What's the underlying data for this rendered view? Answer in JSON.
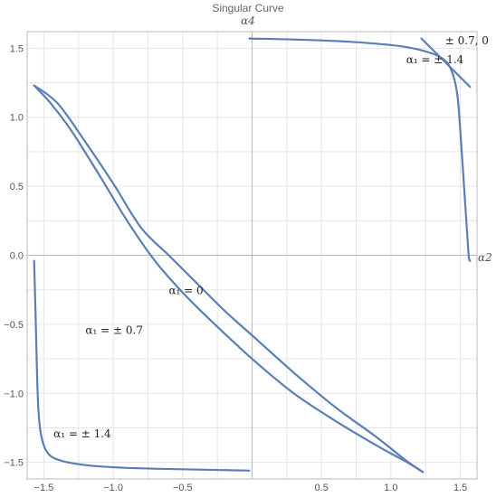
{
  "chart_data": {
    "type": "line",
    "title": "Singular Curve",
    "xlabel": "α2",
    "ylabel": "α4",
    "xlim": [
      -1.62,
      1.62
    ],
    "ylim": [
      -1.62,
      1.62
    ],
    "grid": true,
    "x_ticks": [
      {
        "value": -1.5,
        "label": "−1.5"
      },
      {
        "value": -1.0,
        "label": "−1.0"
      },
      {
        "value": -0.5,
        "label": "−0.5"
      },
      {
        "value": 0.5,
        "label": "0.5"
      },
      {
        "value": 1.0,
        "label": "1.0"
      },
      {
        "value": 1.5,
        "label": "1.5"
      }
    ],
    "y_ticks": [
      {
        "value": 1.5,
        "label": "1.5"
      },
      {
        "value": 1.0,
        "label": "1.0"
      },
      {
        "value": 0.5,
        "label": "0.5"
      },
      {
        "value": 0.0,
        "label": "0.0"
      },
      {
        "value": -0.5,
        "label": "−0.5"
      },
      {
        "value": -1.0,
        "label": "−1.0"
      },
      {
        "value": -1.5,
        "label": "−1.5"
      }
    ],
    "series": [
      {
        "color": "#5b7fb5",
        "points": [
          [
            -1.57,
            1.23
          ],
          [
            -1.45,
            1.1
          ],
          [
            -1.3,
            0.9
          ],
          [
            -1.1,
            0.58
          ],
          [
            -0.9,
            0.25
          ],
          [
            -0.7,
            -0.04
          ],
          [
            -0.5,
            -0.27
          ],
          [
            -0.3,
            -0.47
          ],
          [
            0.0,
            -0.75
          ],
          [
            0.3,
            -1.0
          ],
          [
            0.6,
            -1.2
          ],
          [
            0.9,
            -1.38
          ],
          [
            1.1,
            -1.49
          ],
          [
            1.23,
            -1.57
          ]
        ]
      },
      {
        "color": "#5b7fb5",
        "points": [
          [
            -1.57,
            1.23
          ],
          [
            -1.4,
            1.1
          ],
          [
            -1.2,
            0.82
          ],
          [
            -1.0,
            0.52
          ],
          [
            -0.8,
            0.2
          ],
          [
            -0.6,
            0.0
          ],
          [
            -0.4,
            -0.2
          ],
          [
            -0.2,
            -0.4
          ],
          [
            0.0,
            -0.58
          ],
          [
            0.3,
            -0.85
          ],
          [
            0.6,
            -1.1
          ],
          [
            0.9,
            -1.32
          ],
          [
            1.1,
            -1.48
          ],
          [
            1.23,
            -1.57
          ]
        ]
      },
      {
        "color": "#5b7fb5",
        "points": [
          [
            -0.02,
            1.57
          ],
          [
            0.4,
            1.56
          ],
          [
            0.8,
            1.54
          ],
          [
            1.1,
            1.51
          ],
          [
            1.3,
            1.46
          ],
          [
            1.4,
            1.4
          ],
          [
            1.45,
            1.3
          ],
          [
            1.48,
            1.15
          ],
          [
            1.5,
            0.9
          ],
          [
            1.52,
            0.6
          ],
          [
            1.54,
            0.3
          ],
          [
            1.56,
            0.0
          ],
          [
            1.57,
            -0.04
          ]
        ]
      },
      {
        "color": "#5b7fb5",
        "points": [
          [
            1.22,
            1.57
          ],
          [
            1.3,
            1.49
          ],
          [
            1.38,
            1.41
          ],
          [
            1.47,
            1.32
          ],
          [
            1.57,
            1.22
          ]
        ]
      },
      {
        "color": "#5b7fb5",
        "points": [
          [
            -1.57,
            -0.04
          ],
          [
            -1.56,
            -0.4
          ],
          [
            -1.55,
            -0.8
          ],
          [
            -1.54,
            -1.1
          ],
          [
            -1.52,
            -1.3
          ],
          [
            -1.48,
            -1.42
          ],
          [
            -1.4,
            -1.48
          ],
          [
            -1.2,
            -1.52
          ],
          [
            -0.9,
            -1.54
          ],
          [
            -0.5,
            -1.55
          ],
          [
            -0.02,
            -1.56
          ]
        ]
      }
    ],
    "annotations": [
      {
        "text": "α₁ = 0",
        "x": -0.6,
        "y": -0.28
      },
      {
        "text": "α₁ = ± 0.7",
        "x": -1.2,
        "y": -0.57
      },
      {
        "text": "α₁ = ± 1.4",
        "x": -1.43,
        "y": -1.32
      },
      {
        "text": "α₁ = ± 1.4",
        "x": 1.11,
        "y": 1.39
      },
      {
        "text": "± 0.7, 0",
        "x": 1.39,
        "y": 1.53
      }
    ]
  }
}
